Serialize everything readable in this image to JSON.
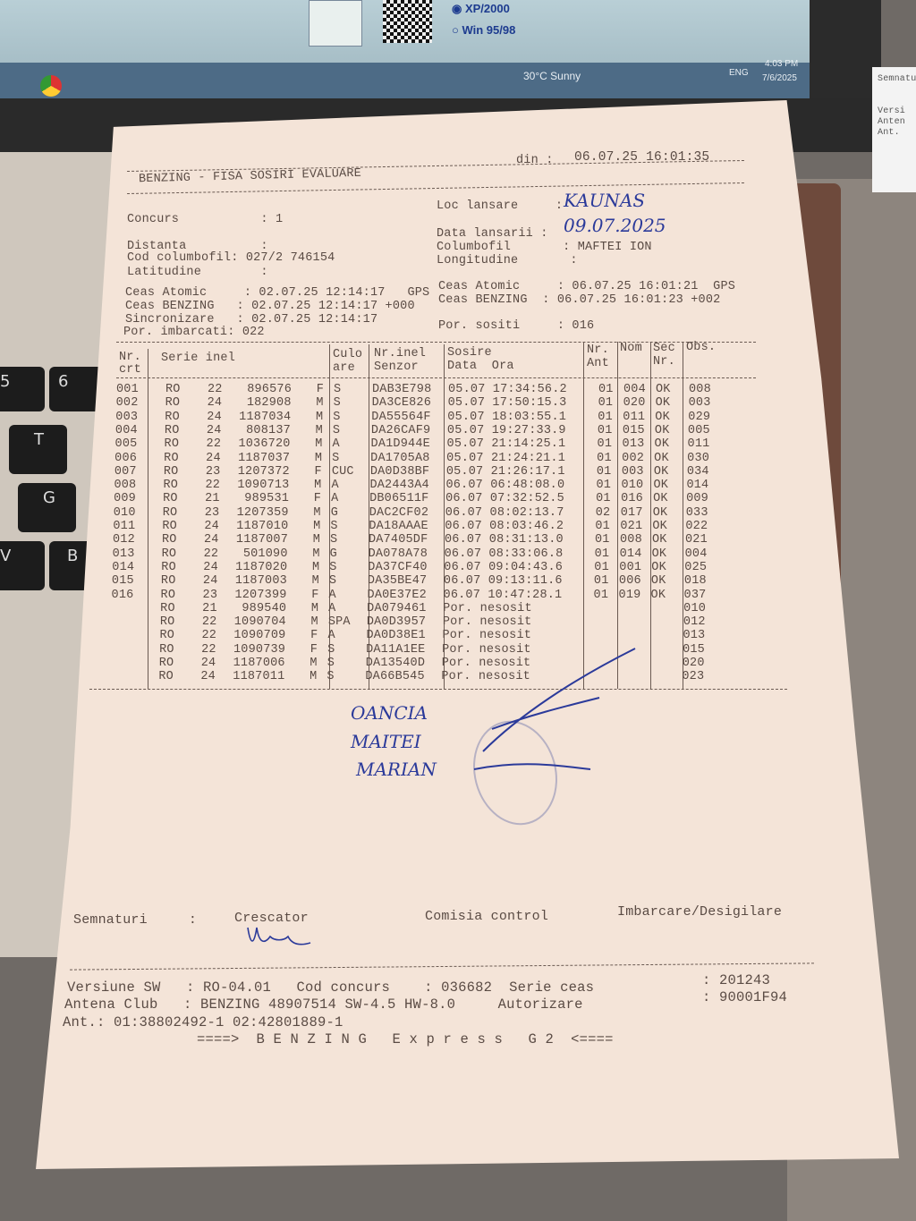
{
  "screen": {
    "radio_xp": "XP/2000",
    "radio_win": "Win 95/98",
    "weather": "30°C Sunny",
    "lang": "ENG",
    "time": "4:03 PM",
    "date": "7/6/2025"
  },
  "keyboard": [
    "5",
    "6",
    "T",
    "G",
    "V",
    "B"
  ],
  "side_paper": [
    "Semnatu",
    "Versi",
    "Anten",
    "Ant."
  ],
  "header": {
    "title": "BENZING - FISA SOSIRI EVALUARE",
    "din_label": "din :",
    "din_value": "06.07.25 16:01:35"
  },
  "info": {
    "concurs": "Concurs           : 1",
    "distanta": "Distanta          :",
    "cod": "Cod columbofil: 027/2 746154",
    "latitudine": "Latitudine        :",
    "loc_label": "Loc lansare     :",
    "loc_value": "KAUNAS",
    "data_label": "Data lansarii :",
    "data_value": "09.07.2025",
    "columbofil": "Columbofil       : MAFTEI ION",
    "longitudine": "Longitudine       :",
    "ceas_atomic_l": "Ceas Atomic     : 02.07.25 12:14:17   GPS",
    "ceas_benzing_l": "Ceas BENZING   : 02.07.25 12:14:17 +000",
    "sincronizare": "Sincronizare   : 02.07.25 12:14:17",
    "por_imbarcati": "Por. imbarcati: 022",
    "ceas_atomic_r": "Ceas Atomic     : 06.07.25 16:01:21  GPS",
    "ceas_benzing_r": "Ceas BENZING  : 06.07.25 16:01:23 +002",
    "por_sositi": "Por. sositi     : 016"
  },
  "table": {
    "headers": {
      "nr": "Nr.\ncrt",
      "serie": "Serie inel",
      "culoare": "Culo\nare",
      "senzor": "Nr.inel\nSenzor",
      "sosire": "Sosire\nData  Ora",
      "ant": "Nr.\nAnt",
      "nom": "Nom",
      "sec": "Sec\nNr.",
      "obs": "Obs."
    },
    "rows": [
      [
        "001",
        "RO",
        "22",
        "896576",
        "F",
        "S",
        "DAB3E798",
        "05.07 17:34:56.2",
        "01",
        "004",
        "OK",
        "008"
      ],
      [
        "002",
        "RO",
        "24",
        "182908",
        "M",
        "S",
        "DA3CE826",
        "05.07 17:50:15.3",
        "01",
        "020",
        "OK",
        "003"
      ],
      [
        "003",
        "RO",
        "24",
        "1187034",
        "M",
        "S",
        "DA55564F",
        "05.07 18:03:55.1",
        "01",
        "011",
        "OK",
        "029"
      ],
      [
        "004",
        "RO",
        "24",
        "808137",
        "M",
        "S",
        "DA26CAF9",
        "05.07 19:27:33.9",
        "01",
        "015",
        "OK",
        "005"
      ],
      [
        "005",
        "RO",
        "22",
        "1036720",
        "M",
        "A",
        "DA1D944E",
        "05.07 21:14:25.1",
        "01",
        "013",
        "OK",
        "011"
      ],
      [
        "006",
        "RO",
        "24",
        "1187037",
        "M",
        "S",
        "DA1705A8",
        "05.07 21:24:21.1",
        "01",
        "002",
        "OK",
        "030"
      ],
      [
        "007",
        "RO",
        "23",
        "1207372",
        "F",
        "CUC",
        "DA0D38BF",
        "05.07 21:26:17.1",
        "01",
        "003",
        "OK",
        "034"
      ],
      [
        "008",
        "RO",
        "22",
        "1090713",
        "M",
        "A",
        "DA2443A4",
        "06.07 06:48:08.0",
        "01",
        "010",
        "OK",
        "014"
      ],
      [
        "009",
        "RO",
        "21",
        "989531",
        "F",
        "A",
        "DB06511F",
        "06.07 07:32:52.5",
        "01",
        "016",
        "OK",
        "009"
      ],
      [
        "010",
        "RO",
        "23",
        "1207359",
        "M",
        "G",
        "DAC2CF02",
        "06.07 08:02:13.7",
        "02",
        "017",
        "OK",
        "033"
      ],
      [
        "011",
        "RO",
        "24",
        "1187010",
        "M",
        "S",
        "DA18AAAE",
        "06.07 08:03:46.2",
        "01",
        "021",
        "OK",
        "022"
      ],
      [
        "012",
        "RO",
        "24",
        "1187007",
        "M",
        "S",
        "DA7405DF",
        "06.07 08:31:13.0",
        "01",
        "008",
        "OK",
        "021"
      ],
      [
        "013",
        "RO",
        "22",
        "501090",
        "M",
        "G",
        "DA078A78",
        "06.07 08:33:06.8",
        "01",
        "014",
        "OK",
        "004"
      ],
      [
        "014",
        "RO",
        "24",
        "1187020",
        "M",
        "S",
        "DA37CF40",
        "06.07 09:04:43.6",
        "01",
        "001",
        "OK",
        "025"
      ],
      [
        "015",
        "RO",
        "24",
        "1187003",
        "M",
        "S",
        "DA35BE47",
        "06.07 09:13:11.6",
        "01",
        "006",
        "OK",
        "018"
      ],
      [
        "016",
        "RO",
        "23",
        "1207399",
        "F",
        "A",
        "DA0E37E2",
        "06.07 10:47:28.1",
        "01",
        "019",
        "OK",
        "037"
      ],
      [
        "",
        "RO",
        "21",
        "989540",
        "M",
        "A",
        "DA079461",
        "Por. nesosit",
        "",
        "",
        "",
        "010"
      ],
      [
        "",
        "RO",
        "22",
        "1090704",
        "M",
        "SPA",
        "DA0D3957",
        "Por. nesosit",
        "",
        "",
        "",
        "012"
      ],
      [
        "",
        "RO",
        "22",
        "1090709",
        "F",
        "A",
        "DA0D38E1",
        "Por. nesosit",
        "",
        "",
        "",
        "013"
      ],
      [
        "",
        "RO",
        "22",
        "1090739",
        "F",
        "S",
        "DA11A1EE",
        "Por. nesosit",
        "",
        "",
        "",
        "015"
      ],
      [
        "",
        "RO",
        "24",
        "1187006",
        "M",
        "S",
        "DA13540D",
        "Por. nesosit",
        "",
        "",
        "",
        "020"
      ],
      [
        "",
        "RO",
        "24",
        "1187011",
        "M",
        "S",
        "DA66B545",
        "Por. nesosit",
        "",
        "",
        "",
        "023"
      ]
    ]
  },
  "handwriting": {
    "line1": "OANCIA",
    "line2": "MAITEI",
    "line3": "MARIAN"
  },
  "signatures": {
    "semnaturi": "Semnaturi     :",
    "crescator": "Crescator",
    "comisia": "Comisia control",
    "imbarcare": "Imbarcare/Desigilare"
  },
  "footer": {
    "versiune": "Versiune SW   : RO-04.01   Cod concurs    : 036682  Serie ceas",
    "serie_ceas": ": 201243",
    "antena": "Antena Club   : BENZING 48907514 SW-4.5 HW-8.0     Autorizare",
    "autorizare": ": 90001F94",
    "ant": "Ant.: 01:38802492-1 02:42801889-1",
    "brand": "====>  B E N Z I N G   E x p r e s s   G 2  <===="
  }
}
